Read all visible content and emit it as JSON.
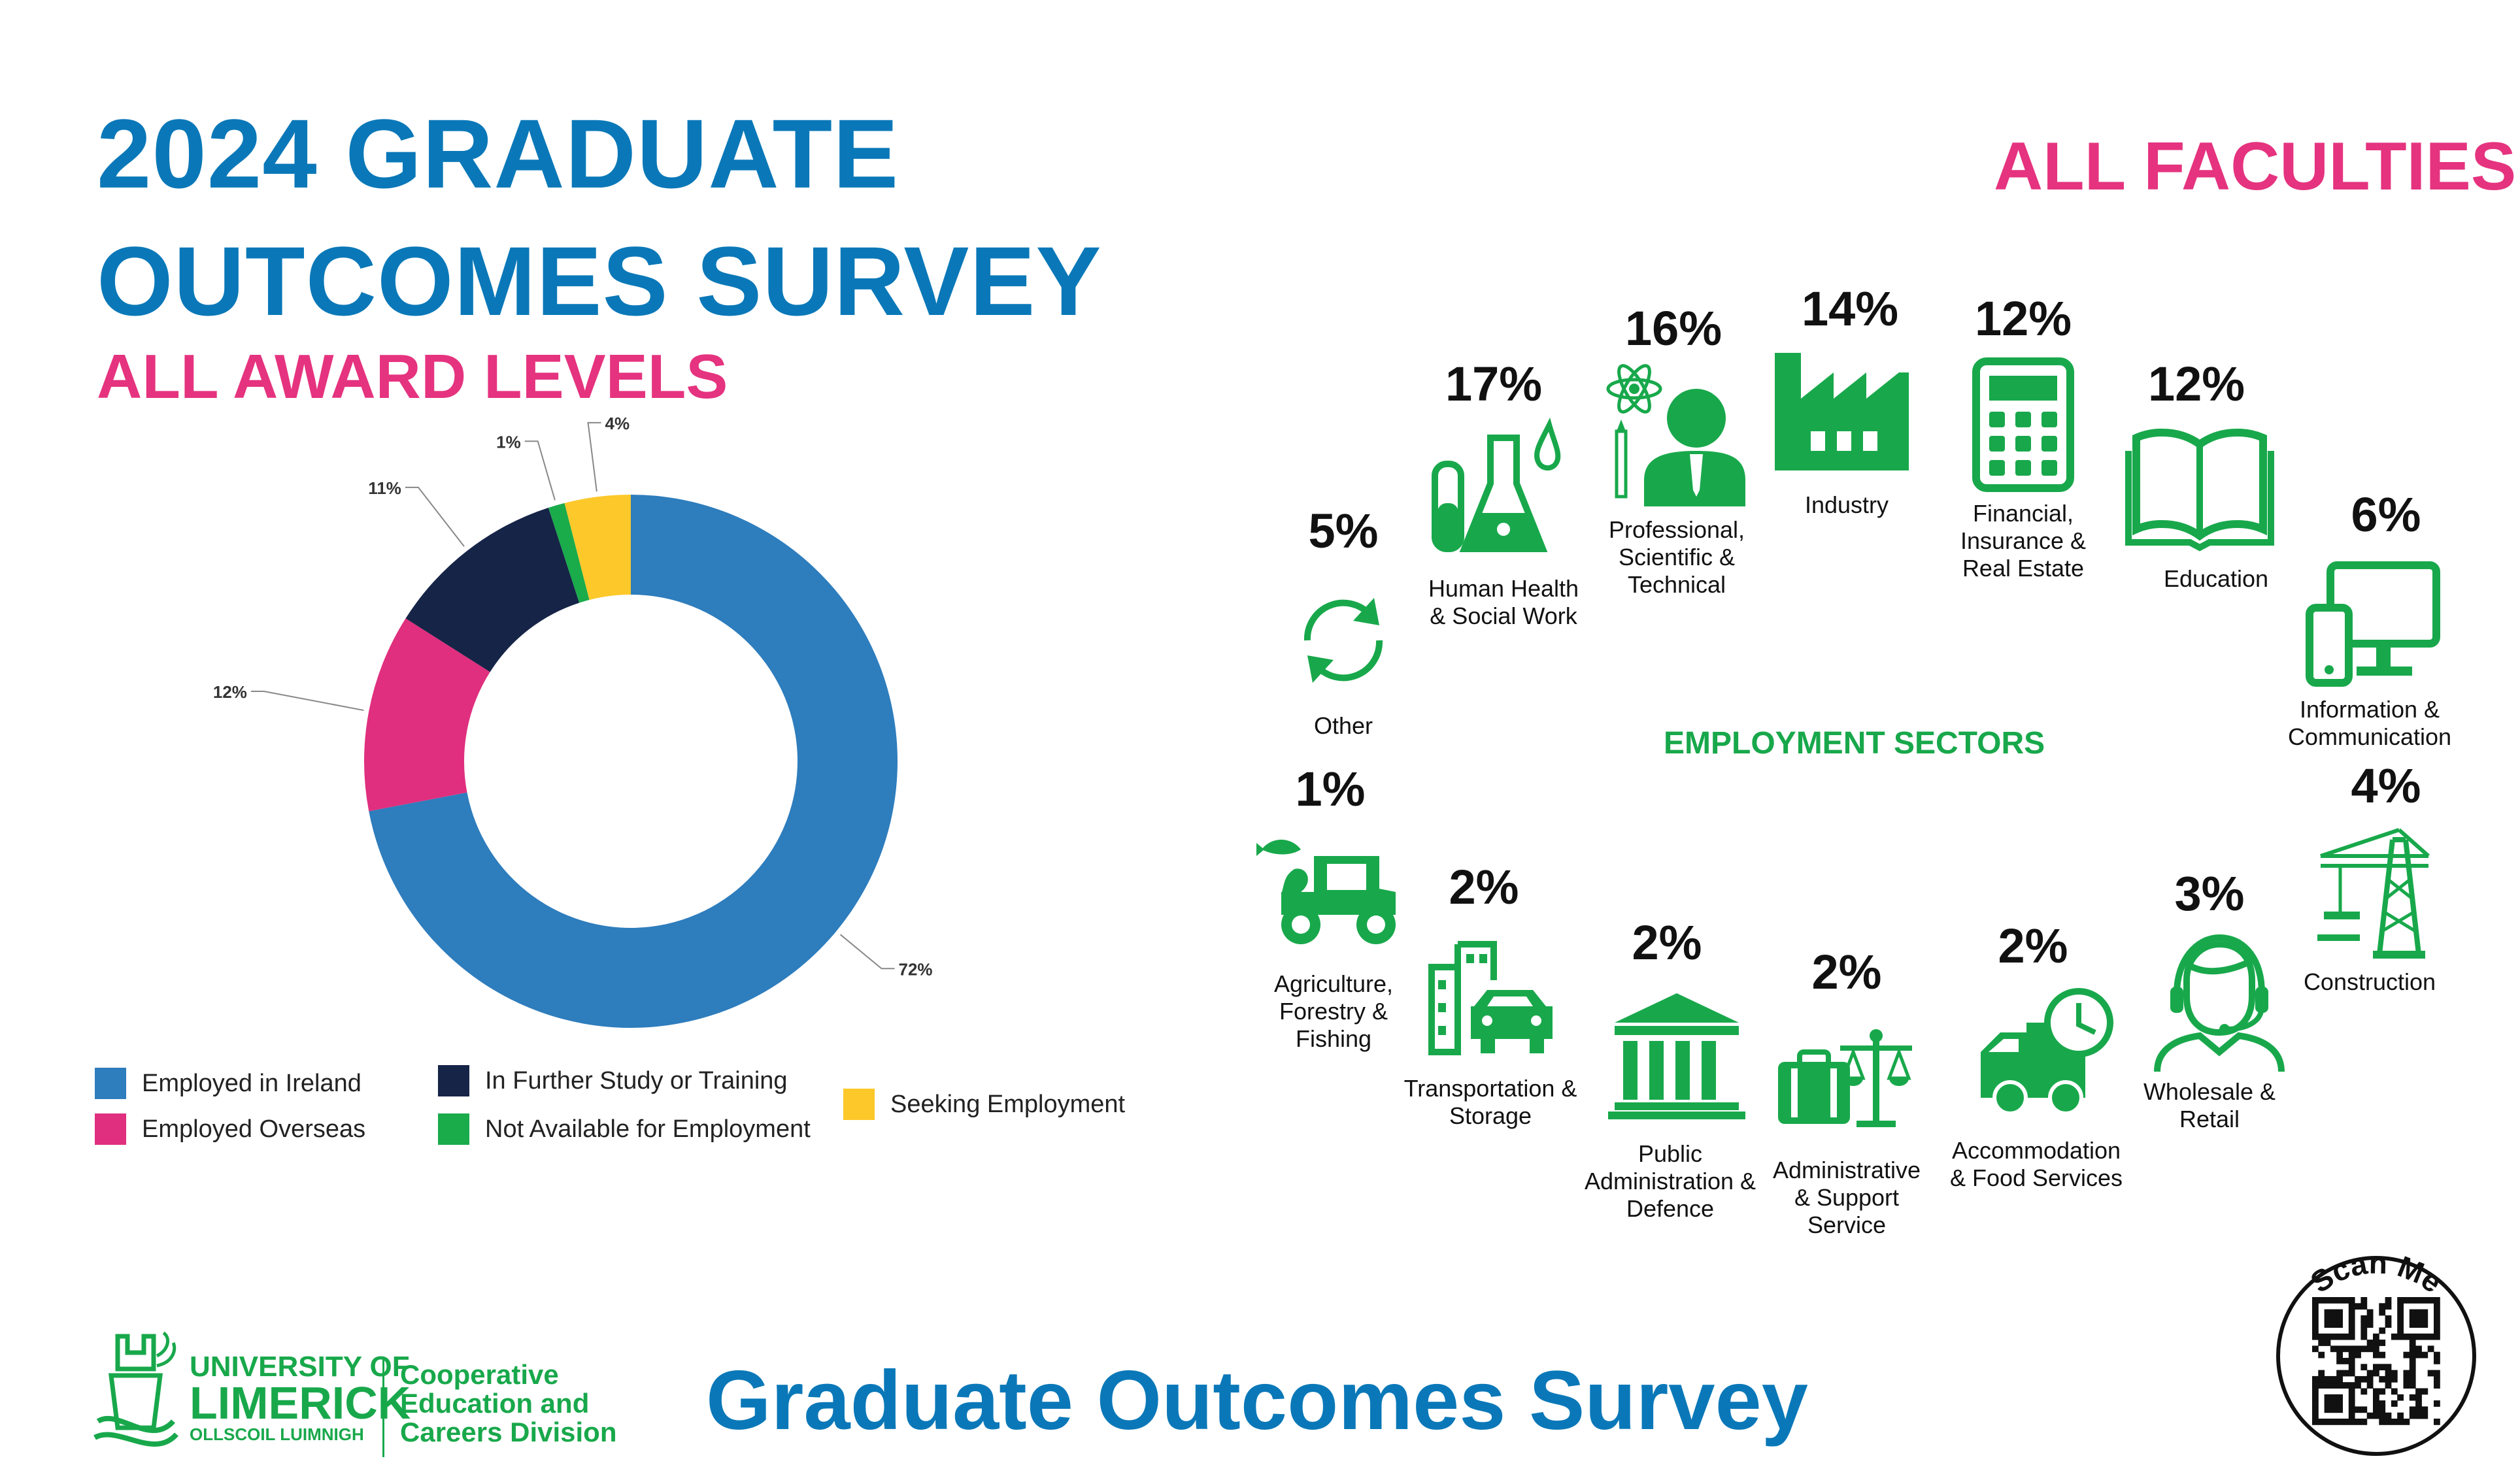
{
  "header": {
    "title_line1": "2024 GRADUATE",
    "title_line2": "OUTCOMES SURVEY",
    "subtitle": "ALL AWARD LEVELS",
    "faculties": "ALL FACULTIES"
  },
  "chart_data": {
    "type": "pie",
    "donut": true,
    "categories": [
      "Employed in Ireland",
      "Employed Overseas",
      "In Further Study or Training",
      "Not Available for Employment",
      "Seeking Employment"
    ],
    "values": [
      72,
      12,
      11,
      1,
      4
    ],
    "labels": [
      "72%",
      "12%",
      "11%",
      "1%",
      "4%"
    ],
    "colors": [
      "#2e7dbd",
      "#e02f7e",
      "#152447",
      "#1aab4b",
      "#fcc82a"
    ],
    "legend_position": "bottom"
  },
  "sectors": {
    "heading": "EMPLOYMENT SECTORS",
    "items": [
      {
        "pct": "5%",
        "label": [
          "Other"
        ],
        "icon": "refresh-icon"
      },
      {
        "pct": "17%",
        "label": [
          "Human Health",
          "& Social Work"
        ],
        "icon": "flask-icon"
      },
      {
        "pct": "16%",
        "label": [
          "Professional,",
          "Scientific &",
          "Technical"
        ],
        "icon": "professional-icon"
      },
      {
        "pct": "14%",
        "label": [
          "Industry"
        ],
        "icon": "factory-icon"
      },
      {
        "pct": "12%",
        "label": [
          "Financial,",
          "Insurance &",
          "Real Estate"
        ],
        "icon": "calculator-icon"
      },
      {
        "pct": "12%",
        "label": [
          "Education"
        ],
        "icon": "book-icon"
      },
      {
        "pct": "6%",
        "label": [
          "Information &",
          "Communication"
        ],
        "icon": "computer-icon"
      },
      {
        "pct": "1%",
        "label": [
          "Agriculture,",
          "Forestry &",
          "Fishing"
        ],
        "icon": "tractor-icon"
      },
      {
        "pct": "2%",
        "label": [
          "Transportation &",
          "Storage"
        ],
        "icon": "car-building-icon"
      },
      {
        "pct": "2%",
        "label": [
          "Public",
          "Administration &",
          "Defence"
        ],
        "icon": "government-building-icon"
      },
      {
        "pct": "2%",
        "label": [
          "Administrative",
          "& Support",
          "Service"
        ],
        "icon": "briefcase-scales-icon"
      },
      {
        "pct": "2%",
        "label": [
          "Accommodation",
          "& Food Services"
        ],
        "icon": "delivery-truck-icon"
      },
      {
        "pct": "3%",
        "label": [
          "Wholesale &",
          "Retail"
        ],
        "icon": "headset-agent-icon"
      },
      {
        "pct": "4%",
        "label": [
          "Construction"
        ],
        "icon": "crane-icon"
      }
    ]
  },
  "footer": {
    "uni_line1": "UNIVERSITY OF",
    "uni_line2": "LIMERICK",
    "uni_line3": "OLLSCOIL LUIMNIGH",
    "div_line1": "Cooperative",
    "div_line2": "Education and",
    "div_line3": "Careers Division",
    "survey": "Graduate Outcomes Survey",
    "scan": "Scan Me"
  },
  "colors": {
    "blue": "#0a78b8",
    "pink": "#e5337f",
    "green": "#18a84b"
  }
}
